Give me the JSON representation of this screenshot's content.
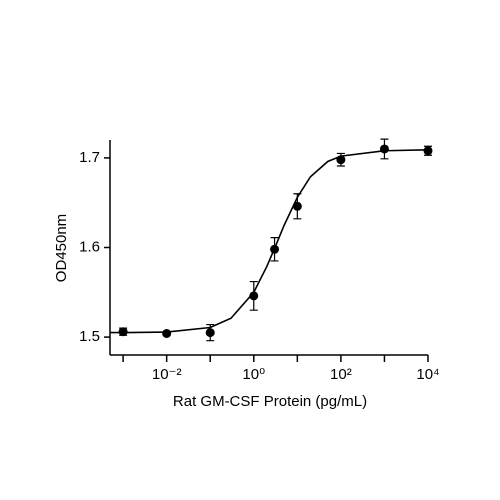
{
  "chart_data": {
    "type": "scatter",
    "x_label": "Rat GM-CSF Protein (pg/mL)",
    "y_label": "OD450nm",
    "xscale": "log",
    "xlim": [
      0.0005,
      10000
    ],
    "xticks": [
      {
        "value": 0.01,
        "label": "10⁻²"
      },
      {
        "value": 1,
        "label": "10⁰"
      },
      {
        "value": 100,
        "label": "10²"
      },
      {
        "value": 10000,
        "label": "10⁴"
      }
    ],
    "xminorticks": [
      0.001,
      0.1,
      10,
      1000
    ],
    "ylim": [
      1.48,
      1.72
    ],
    "yticks": [
      1.5,
      1.6,
      1.7
    ],
    "color": "#000000",
    "series": [
      {
        "x": [
          0.001,
          0.01,
          0.1,
          1,
          3,
          10,
          100,
          1000,
          10000
        ],
        "values": [
          1.506,
          1.504,
          1.505,
          1.546,
          1.598,
          1.646,
          1.698,
          1.71,
          1.708
        ],
        "errors": [
          0.004,
          0.002,
          0.009,
          0.016,
          0.013,
          0.014,
          0.007,
          0.011,
          0.005
        ]
      }
    ],
    "fit": {
      "x": [
        0.0005,
        0.001,
        0.01,
        0.1,
        0.3,
        1,
        2,
        3,
        5,
        10,
        20,
        50,
        100,
        1000,
        10000
      ],
      "values": [
        1.505,
        1.505,
        1.5056,
        1.5107,
        1.521,
        1.55,
        1.579,
        1.599,
        1.625,
        1.656,
        1.679,
        1.696,
        1.702,
        1.708,
        1.709
      ]
    }
  }
}
